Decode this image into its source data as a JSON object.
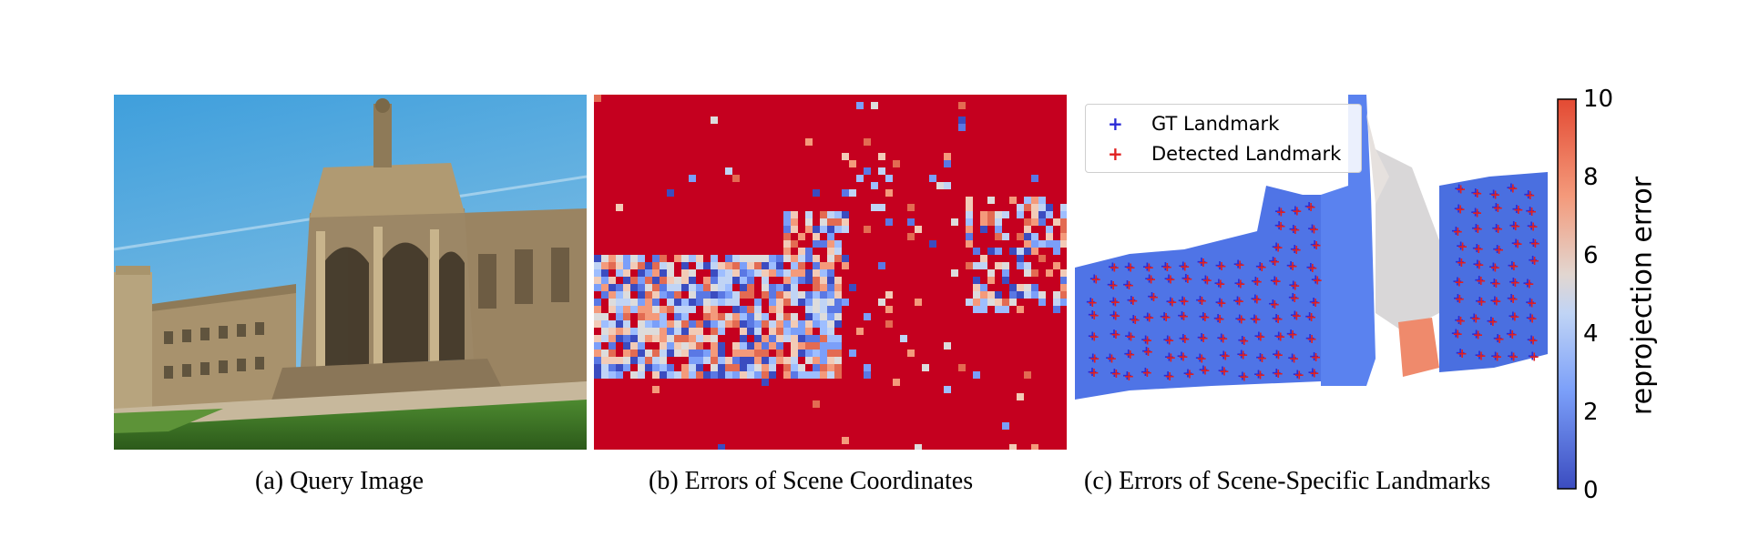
{
  "panels": {
    "a": {
      "caption": "(a) Query Image"
    },
    "b": {
      "caption": "(b) Errors of Scene Coordinates"
    },
    "c": {
      "caption": "(c) Errors of Scene-Specific Landmarks"
    }
  },
  "legend": {
    "gt": {
      "label": "GT Landmark",
      "marker": "+",
      "color": "#2a2ad6"
    },
    "detected": {
      "label": "Detected Landmark",
      "marker": "+",
      "color": "#e02020"
    }
  },
  "colorbar": {
    "label": "reprojection error",
    "ticks": [
      "0",
      "2",
      "4",
      "6",
      "8",
      "10"
    ],
    "colors": {
      "low": "#3b4cc0",
      "mid": "#dddddd",
      "high": "#b40426"
    }
  },
  "colors": {
    "sky": "#4aa3dc",
    "grass": "#3f7a2c",
    "stone": "#8f7a5f",
    "error_bg": "#c5001f"
  }
}
